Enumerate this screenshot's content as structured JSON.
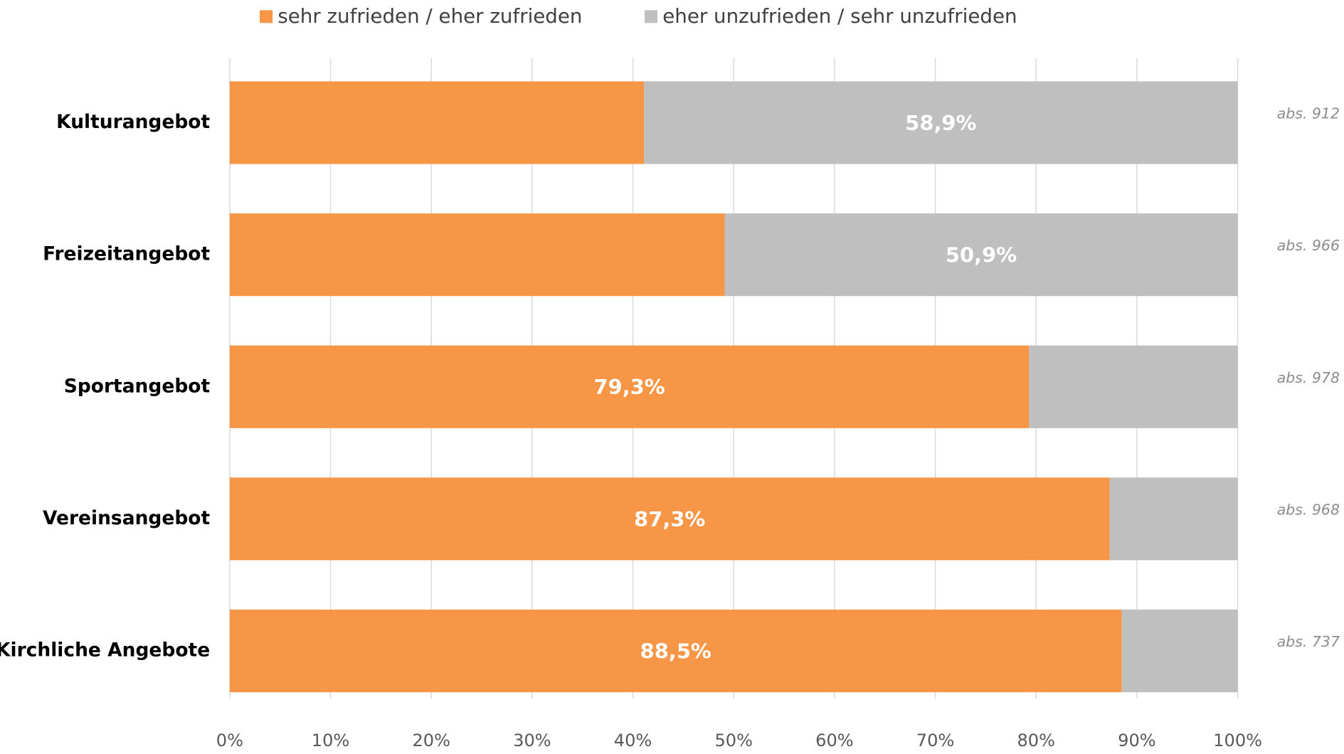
{
  "chart_data": {
    "type": "stacked_barh",
    "categories": [
      "Kulturangebot",
      "Freizeitangebot",
      "Sportangebot",
      "Vereinsangebot",
      "Kirchliche Angebote"
    ],
    "series": [
      {
        "name": "sehr zufrieden / eher zufrieden",
        "color": "#f79646",
        "values": [
          41.1,
          49.1,
          79.3,
          87.3,
          88.5
        ],
        "value_labels": [
          null,
          null,
          "79,3%",
          "87,3%",
          "88,5%"
        ]
      },
      {
        "name": "eher unzufrieden / sehr unzufrieden",
        "color": "#bfbfbf",
        "values": [
          58.9,
          50.9,
          20.7,
          12.7,
          11.5
        ],
        "value_labels": [
          "58,9%",
          "50,9%",
          null,
          null,
          null
        ]
      }
    ],
    "annotations": [
      "abs. 912",
      "abs. 966",
      "abs. 978",
      "abs. 968",
      "abs. 737"
    ],
    "xlim": [
      0,
      100
    ],
    "xticks": [
      {
        "value": 0,
        "label": "0%"
      },
      {
        "value": 10,
        "label": "10%"
      },
      {
        "value": 20,
        "label": "20%"
      },
      {
        "value": 30,
        "label": "30%"
      },
      {
        "value": 40,
        "label": "40%"
      },
      {
        "value": 50,
        "label": "50%"
      },
      {
        "value": 60,
        "label": "60%"
      },
      {
        "value": 70,
        "label": "70%"
      },
      {
        "value": 80,
        "label": "80%"
      },
      {
        "value": 90,
        "label": "90%"
      },
      {
        "value": 100,
        "label": "100%"
      }
    ],
    "grid": true
  }
}
